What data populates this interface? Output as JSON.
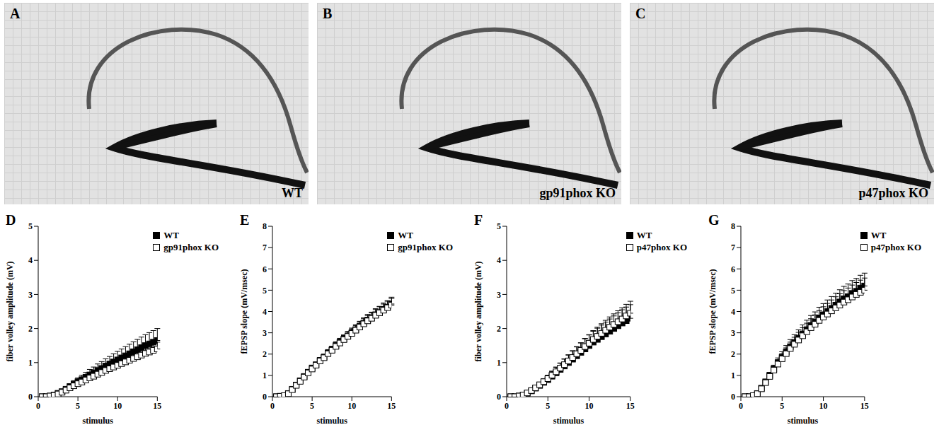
{
  "images": [
    {
      "letter": "A",
      "label": "WT"
    },
    {
      "letter": "B",
      "label": "gp91phox KO"
    },
    {
      "letter": "C",
      "label": "p47phox KO"
    }
  ],
  "chart_data": [
    {
      "letter": "D",
      "type": "scatter",
      "x_label": "stimulus",
      "y_label": "fiber volley amplitude (mV)",
      "legend": "upper right",
      "xlim": [
        0,
        15
      ],
      "xticks": [
        0,
        5,
        10,
        15
      ],
      "ylim": [
        0,
        5
      ],
      "yticks": [
        0,
        1,
        2,
        3,
        4,
        5
      ],
      "x": [
        0.5,
        1,
        1.5,
        2,
        2.5,
        3,
        3.5,
        4,
        4.5,
        5,
        5.5,
        6,
        6.5,
        7,
        7.5,
        8,
        8.5,
        9,
        9.5,
        10,
        10.5,
        11,
        11.5,
        12,
        12.5,
        13,
        13.5,
        14,
        14.5,
        15
      ],
      "series": [
        {
          "name": "WT",
          "color": "#000000",
          "marker": "square",
          "values": [
            0,
            0,
            0.02,
            0.05,
            0.1,
            0.15,
            0.22,
            0.3,
            0.37,
            0.44,
            0.5,
            0.57,
            0.64,
            0.7,
            0.77,
            0.83,
            0.9,
            0.96,
            1.02,
            1.08,
            1.14,
            1.2,
            1.26,
            1.32,
            1.38,
            1.44,
            1.5,
            1.55,
            1.6,
            1.65
          ],
          "errors": [
            0,
            0,
            0.01,
            0.02,
            0.03,
            0.05,
            0.06,
            0.08,
            0.1,
            0.11,
            0.13,
            0.14,
            0.16,
            0.17,
            0.19,
            0.2,
            0.21,
            0.22,
            0.24,
            0.25,
            0.26,
            0.27,
            0.28,
            0.29,
            0.3,
            0.31,
            0.32,
            0.33,
            0.34,
            0.35
          ]
        },
        {
          "name": "gp91phox KO",
          "color": "#000000",
          "marker": "open_square",
          "values": [
            0,
            0,
            0.02,
            0.04,
            0.08,
            0.13,
            0.19,
            0.26,
            0.32,
            0.38,
            0.43,
            0.49,
            0.55,
            0.6,
            0.66,
            0.71,
            0.77,
            0.82,
            0.87,
            0.92,
            0.97,
            1.02,
            1.07,
            1.12,
            1.17,
            1.22,
            1.27,
            1.31,
            1.36,
            1.4
          ],
          "errors": [
            0,
            0,
            0.01,
            0.01,
            0.02,
            0.03,
            0.04,
            0.05,
            0.06,
            0.07,
            0.08,
            0.09,
            0.1,
            0.1,
            0.11,
            0.12,
            0.12,
            0.13,
            0.14,
            0.14,
            0.15,
            0.16,
            0.16,
            0.17,
            0.17,
            0.18,
            0.18,
            0.19,
            0.19,
            0.2
          ]
        }
      ]
    },
    {
      "letter": "E",
      "type": "scatter",
      "x_label": "stimulus",
      "y_label": "fEPSP slope (mV/msec)",
      "legend": "upper right",
      "xlim": [
        0,
        15
      ],
      "xticks": [
        0,
        5,
        10,
        15
      ],
      "ylim": [
        0,
        8
      ],
      "yticks": [
        0,
        1,
        2,
        3,
        4,
        5,
        6,
        7,
        8
      ],
      "x": [
        0.5,
        1,
        1.5,
        2,
        2.5,
        3,
        3.5,
        4,
        4.5,
        5,
        5.5,
        6,
        6.5,
        7,
        7.5,
        8,
        8.5,
        9,
        9.5,
        10,
        10.5,
        11,
        11.5,
        12,
        12.5,
        13,
        13.5,
        14,
        14.5,
        15
      ],
      "series": [
        {
          "name": "WT",
          "color": "#000000",
          "marker": "square",
          "values": [
            0,
            0.02,
            0.05,
            0.15,
            0.35,
            0.55,
            0.75,
            0.95,
            1.15,
            1.35,
            1.5,
            1.7,
            1.85,
            2.05,
            2.2,
            2.4,
            2.55,
            2.7,
            2.85,
            3.0,
            3.15,
            3.3,
            3.45,
            3.6,
            3.7,
            3.85,
            3.95,
            4.1,
            4.2,
            4.35
          ],
          "errors": [
            0,
            0,
            0.01,
            0.02,
            0.04,
            0.05,
            0.07,
            0.08,
            0.1,
            0.11,
            0.12,
            0.14,
            0.15,
            0.16,
            0.17,
            0.18,
            0.19,
            0.2,
            0.21,
            0.22,
            0.23,
            0.24,
            0.25,
            0.26,
            0.27,
            0.28,
            0.29,
            0.3,
            0.31,
            0.32
          ]
        },
        {
          "name": "gp91phox KO",
          "color": "#000000",
          "marker": "open_square",
          "values": [
            0,
            0.02,
            0.05,
            0.14,
            0.33,
            0.53,
            0.72,
            0.92,
            1.12,
            1.3,
            1.48,
            1.68,
            1.83,
            2.02,
            2.18,
            2.36,
            2.52,
            2.68,
            2.83,
            2.97,
            3.12,
            3.27,
            3.42,
            3.56,
            3.68,
            3.82,
            3.94,
            4.06,
            4.18,
            4.3
          ],
          "errors": [
            0,
            0,
            0.01,
            0.02,
            0.03,
            0.05,
            0.06,
            0.08,
            0.09,
            0.1,
            0.11,
            0.12,
            0.14,
            0.15,
            0.16,
            0.17,
            0.18,
            0.19,
            0.2,
            0.21,
            0.22,
            0.23,
            0.24,
            0.25,
            0.26,
            0.27,
            0.28,
            0.29,
            0.3,
            0.31
          ]
        }
      ]
    },
    {
      "letter": "F",
      "type": "scatter",
      "x_label": "stimulus",
      "y_label": "fiber volley amplitude (mV)",
      "legend": "upper right",
      "xlim": [
        0,
        15
      ],
      "xticks": [
        0,
        5,
        10,
        15
      ],
      "ylim": [
        0,
        5
      ],
      "yticks": [
        0,
        1,
        2,
        3,
        4,
        5
      ],
      "x": [
        0.5,
        1,
        1.5,
        2,
        2.5,
        3,
        3.5,
        4,
        4.5,
        5,
        5.5,
        6,
        6.5,
        7,
        7.5,
        8,
        8.5,
        9,
        9.5,
        10,
        10.5,
        11,
        11.5,
        12,
        12.5,
        13,
        13.5,
        14,
        14.5,
        15
      ],
      "series": [
        {
          "name": "WT",
          "color": "#000000",
          "marker": "square",
          "values": [
            0,
            0,
            0.02,
            0.05,
            0.1,
            0.17,
            0.25,
            0.33,
            0.42,
            0.5,
            0.6,
            0.7,
            0.8,
            0.9,
            1.0,
            1.1,
            1.2,
            1.3,
            1.4,
            1.5,
            1.6,
            1.68,
            1.76,
            1.84,
            1.92,
            2.0,
            2.08,
            2.16,
            2.23,
            2.3
          ],
          "errors": [
            0,
            0,
            0.01,
            0.02,
            0.03,
            0.04,
            0.06,
            0.08,
            0.1,
            0.12,
            0.14,
            0.16,
            0.18,
            0.2,
            0.22,
            0.24,
            0.26,
            0.28,
            0.3,
            0.31,
            0.32,
            0.33,
            0.34,
            0.35,
            0.36,
            0.37,
            0.38,
            0.39,
            0.4,
            0.4
          ]
        },
        {
          "name": "p47phox KO",
          "color": "#000000",
          "marker": "open_square",
          "values": [
            0,
            0,
            0.02,
            0.05,
            0.11,
            0.18,
            0.26,
            0.35,
            0.44,
            0.53,
            0.63,
            0.73,
            0.84,
            0.94,
            1.05,
            1.15,
            1.26,
            1.36,
            1.47,
            1.57,
            1.68,
            1.77,
            1.86,
            1.95,
            2.04,
            2.12,
            2.2,
            2.28,
            2.37,
            2.45
          ],
          "errors": [
            0,
            0,
            0.01,
            0.02,
            0.03,
            0.04,
            0.05,
            0.07,
            0.09,
            0.1,
            0.12,
            0.14,
            0.15,
            0.17,
            0.18,
            0.2,
            0.21,
            0.22,
            0.24,
            0.25,
            0.26,
            0.27,
            0.28,
            0.29,
            0.3,
            0.31,
            0.32,
            0.33,
            0.34,
            0.35
          ]
        }
      ]
    },
    {
      "letter": "G",
      "type": "scatter",
      "x_label": "stimulus",
      "y_label": "fEPSP slope (mV/msec)",
      "legend": "upper right",
      "xlim": [
        0,
        15
      ],
      "xticks": [
        0,
        5,
        10,
        15
      ],
      "ylim": [
        0,
        8
      ],
      "yticks": [
        0,
        1,
        2,
        3,
        4,
        5,
        6,
        7,
        8
      ],
      "x": [
        0.5,
        1,
        1.5,
        2,
        2.5,
        3,
        3.5,
        4,
        4.5,
        5,
        5.5,
        6,
        6.5,
        7,
        7.5,
        8,
        8.5,
        9,
        9.5,
        10,
        10.5,
        11,
        11.5,
        12,
        12.5,
        13,
        13.5,
        14,
        14.5,
        15
      ],
      "series": [
        {
          "name": "WT",
          "color": "#000000",
          "marker": "square",
          "values": [
            0,
            0,
            0.05,
            0.15,
            0.4,
            0.7,
            1.0,
            1.3,
            1.6,
            1.85,
            2.1,
            2.35,
            2.55,
            2.75,
            2.95,
            3.15,
            3.35,
            3.5,
            3.7,
            3.85,
            4.0,
            4.15,
            4.3,
            4.45,
            4.6,
            4.7,
            4.85,
            4.95,
            5.1,
            5.2
          ],
          "errors": [
            0,
            0,
            0.01,
            0.03,
            0.06,
            0.1,
            0.14,
            0.18,
            0.22,
            0.26,
            0.3,
            0.33,
            0.36,
            0.39,
            0.42,
            0.44,
            0.46,
            0.48,
            0.5,
            0.52,
            0.54,
            0.55,
            0.56,
            0.57,
            0.58,
            0.59,
            0.6,
            0.6,
            0.6,
            0.6
          ]
        },
        {
          "name": "p47phox KO",
          "color": "#000000",
          "marker": "open_square",
          "values": [
            0,
            0,
            0.05,
            0.14,
            0.37,
            0.66,
            0.95,
            1.25,
            1.53,
            1.78,
            2.02,
            2.26,
            2.46,
            2.66,
            2.86,
            3.05,
            3.24,
            3.4,
            3.58,
            3.74,
            3.88,
            4.03,
            4.17,
            4.3,
            4.44,
            4.55,
            4.68,
            4.8,
            4.9,
            5.0
          ],
          "errors": [
            0,
            0,
            0.01,
            0.03,
            0.05,
            0.09,
            0.13,
            0.17,
            0.2,
            0.24,
            0.27,
            0.3,
            0.33,
            0.36,
            0.38,
            0.4,
            0.42,
            0.44,
            0.46,
            0.48,
            0.5,
            0.51,
            0.52,
            0.53,
            0.54,
            0.55,
            0.56,
            0.56,
            0.57,
            0.57
          ]
        }
      ]
    }
  ]
}
